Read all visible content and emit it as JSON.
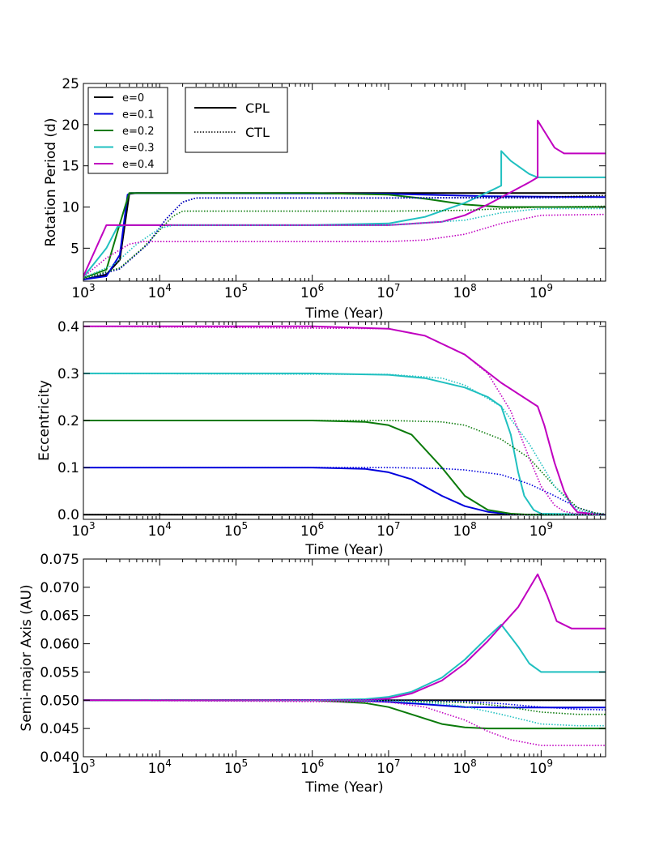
{
  "chart_data": [
    {
      "type": "line",
      "ylabel": "Rotation Period (d)",
      "xlabel": "Time (Year)",
      "xscale": "log",
      "xlim": [
        1000,
        7000000000
      ],
      "ylim": [
        1,
        25
      ],
      "yticks": [
        5,
        10,
        15,
        20,
        25
      ],
      "ytick_labels": [
        "5",
        "10",
        "15",
        "20",
        "25"
      ],
      "xticks": [
        1000,
        10000,
        100000,
        1000000,
        10000000,
        100000000,
        1000000000
      ],
      "xtick_bases": [
        "10",
        "10",
        "10",
        "10",
        "10",
        "10",
        "10"
      ],
      "xtick_exps": [
        "3",
        "4",
        "5",
        "6",
        "7",
        "8",
        "9"
      ],
      "legend_ecc": {
        "placement": "top-left",
        "entries": [
          {
            "label": "e=0",
            "color": "#000000"
          },
          {
            "label": "e=0.1",
            "color": "#0000dd"
          },
          {
            "label": "e=0.2",
            "color": "#0a7a0a"
          },
          {
            "label": "e=0.3",
            "color": "#20c0c0"
          },
          {
            "label": "e=0.4",
            "color": "#c000c0"
          }
        ]
      },
      "legend_model": {
        "placement": "top-left",
        "entries": [
          {
            "label": "CPL",
            "style": "solid"
          },
          {
            "label": "CTL",
            "style": "dotted"
          }
        ]
      },
      "series": [
        {
          "name": "e=0 CPL",
          "color": "#000000",
          "style": "solid",
          "x": [
            1000,
            2000,
            3000,
            4000,
            5000,
            1000000000,
            7000000000
          ],
          "y": [
            1.2,
            1.8,
            3.6,
            11.6,
            11.7,
            11.7,
            11.7
          ]
        },
        {
          "name": "e=0.1 CPL",
          "color": "#0000dd",
          "style": "solid",
          "x": [
            1000,
            2000,
            3000,
            3800,
            4200,
            10000000,
            200000000,
            7000000000
          ],
          "y": [
            1.2,
            1.6,
            4.2,
            11.5,
            11.7,
            11.6,
            11.3,
            11.2
          ]
        },
        {
          "name": "e=0.2 CPL",
          "color": "#0a7a0a",
          "style": "solid",
          "x": [
            1000,
            2000,
            2800,
            3500,
            4000,
            1000000,
            10000000,
            30000000,
            100000000,
            300000000,
            1000000000,
            7000000000
          ],
          "y": [
            1.4,
            2.4,
            7,
            10,
            11.7,
            11.7,
            11.5,
            11,
            10.3,
            10,
            10,
            10
          ]
        },
        {
          "name": "e=0.3 CPL",
          "color": "#20c0c0",
          "style": "solid",
          "x": [
            1000,
            2000,
            2800,
            3500,
            1000000,
            10000000,
            30000000,
            100000000,
            200000000,
            300000000,
            300001000,
            400000000,
            700000000,
            900000000,
            7000000000
          ],
          "y": [
            1.5,
            5,
            7.6,
            7.8,
            7.8,
            8,
            8.8,
            10.5,
            11.8,
            12.6,
            16.8,
            15.6,
            14,
            13.6,
            13.6
          ]
        },
        {
          "name": "e=0.4 CPL",
          "color": "#c000c0",
          "style": "solid",
          "x": [
            1000,
            2000,
            1000000,
            10000000,
            50000000,
            100000000,
            200000000,
            400000000,
            700000000,
            900000000,
            900001000,
            1100000000,
            1500000000,
            2000000000,
            7000000000
          ],
          "y": [
            1.6,
            7.8,
            7.8,
            7.8,
            8.2,
            9,
            10.3,
            11.8,
            13,
            13.6,
            20.5,
            19.2,
            17.2,
            16.5,
            16.5
          ]
        },
        {
          "name": "e=0 CTL",
          "color": "#000000",
          "style": "dotted",
          "x": [
            1000,
            3000,
            7000,
            12000,
            20000,
            30000,
            10000000,
            1000000000,
            7000000000
          ],
          "y": [
            1.2,
            2.5,
            5.5,
            8.5,
            10.6,
            11.1,
            11.1,
            11.2,
            11.4
          ]
        },
        {
          "name": "e=0.1 CTL",
          "color": "#0000dd",
          "style": "dotted",
          "x": [
            1000,
            3000,
            7000,
            12000,
            20000,
            30000,
            10000000,
            1000000000,
            7000000000
          ],
          "y": [
            1.2,
            2.5,
            5.5,
            8.5,
            10.6,
            11.1,
            11.1,
            11.1,
            11.2
          ]
        },
        {
          "name": "e=0.2 CTL",
          "color": "#0a7a0a",
          "style": "dotted",
          "x": [
            1000,
            3000,
            6000,
            10000,
            15000,
            20000,
            10000000,
            100000000,
            1000000000,
            7000000000
          ],
          "y": [
            1.3,
            2.6,
            5,
            7.2,
            8.9,
            9.5,
            9.5,
            9.6,
            10,
            10.1
          ]
        },
        {
          "name": "e=0.3 CTL",
          "color": "#20c0c0",
          "style": "dotted",
          "x": [
            1000,
            2500,
            5000,
            10000,
            15000,
            1000000,
            10000000,
            100000000,
            300000000,
            1000000000,
            7000000000
          ],
          "y": [
            1.4,
            3,
            5.5,
            7.4,
            7.8,
            7.8,
            7.8,
            8.4,
            9.3,
            9.8,
            9.8
          ]
        },
        {
          "name": "e=0.4 CTL",
          "color": "#c000c0",
          "style": "dotted",
          "x": [
            1000,
            2000,
            4000,
            6000,
            10000,
            10000000,
            30000000,
            100000000,
            300000000,
            1000000000,
            7000000000
          ],
          "y": [
            1.5,
            3.8,
            5.5,
            5.8,
            5.8,
            5.8,
            6,
            6.7,
            8,
            9,
            9.1
          ]
        }
      ]
    },
    {
      "type": "line",
      "ylabel": "Eccentricity",
      "xlabel": "Time (Year)",
      "xscale": "log",
      "xlim": [
        1000,
        7000000000
      ],
      "ylim": [
        -0.01,
        0.41
      ],
      "yticks": [
        0,
        0.1,
        0.2,
        0.3,
        0.4
      ],
      "ytick_labels": [
        "0.0",
        "0.1",
        "0.2",
        "0.3",
        "0.4"
      ],
      "xticks": [
        1000,
        10000,
        100000,
        1000000,
        10000000,
        100000000,
        1000000000
      ],
      "xtick_bases": [
        "10",
        "10",
        "10",
        "10",
        "10",
        "10",
        "10"
      ],
      "xtick_exps": [
        "3",
        "4",
        "5",
        "6",
        "7",
        "8",
        "9"
      ],
      "series": [
        {
          "name": "e=0 CPL",
          "color": "#000000",
          "style": "solid",
          "x": [
            1000,
            7000000000
          ],
          "y": [
            0,
            0
          ]
        },
        {
          "name": "e=0.1 CPL",
          "color": "#0000dd",
          "style": "solid",
          "x": [
            1000,
            1000000,
            5000000,
            10000000,
            20000000,
            50000000,
            100000000,
            200000000,
            400000000,
            700000000,
            7000000000
          ],
          "y": [
            0.1,
            0.1,
            0.097,
            0.09,
            0.075,
            0.04,
            0.018,
            0.006,
            0.001,
            0,
            0
          ]
        },
        {
          "name": "e=0.2 CPL",
          "color": "#0a7a0a",
          "style": "solid",
          "x": [
            1000,
            1000000,
            5000000,
            10000000,
            20000000,
            50000000,
            100000000,
            200000000,
            400000000,
            700000000,
            7000000000
          ],
          "y": [
            0.2,
            0.2,
            0.197,
            0.19,
            0.17,
            0.1,
            0.04,
            0.01,
            0.002,
            0,
            0
          ]
        },
        {
          "name": "e=0.3 CPL",
          "color": "#20c0c0",
          "style": "solid",
          "x": [
            1000,
            1000000,
            10000000,
            30000000,
            100000000,
            200000000,
            300000000,
            400000000,
            500000000,
            600000000,
            800000000,
            1000000000,
            7000000000
          ],
          "y": [
            0.3,
            0.3,
            0.297,
            0.29,
            0.27,
            0.25,
            0.23,
            0.17,
            0.09,
            0.04,
            0.01,
            0.002,
            0
          ]
        },
        {
          "name": "e=0.4 CPL",
          "color": "#c000c0",
          "style": "solid",
          "x": [
            1000,
            1000000,
            10000000,
            30000000,
            100000000,
            300000000,
            900000000,
            1100000000,
            1500000000,
            2000000000,
            2500000000,
            3000000000,
            7000000000
          ],
          "y": [
            0.4,
            0.4,
            0.395,
            0.38,
            0.34,
            0.28,
            0.23,
            0.19,
            0.11,
            0.05,
            0.02,
            0.005,
            0
          ]
        },
        {
          "name": "e=0 CTL",
          "color": "#000000",
          "style": "dotted",
          "x": [
            1000,
            7000000000
          ],
          "y": [
            0,
            0
          ]
        },
        {
          "name": "e=0.1 CTL",
          "color": "#0000dd",
          "style": "dotted",
          "x": [
            1000,
            10000000,
            50000000,
            100000000,
            300000000,
            700000000,
            1500000000,
            3000000000,
            5000000000,
            7000000000
          ],
          "y": [
            0.1,
            0.1,
            0.098,
            0.095,
            0.085,
            0.065,
            0.04,
            0.015,
            0.004,
            0.001
          ]
        },
        {
          "name": "e=0.2 CTL",
          "color": "#0a7a0a",
          "style": "dotted",
          "x": [
            1000,
            10000000,
            50000000,
            100000000,
            300000000,
            700000000,
            1500000000,
            3000000000,
            5000000000,
            7000000000
          ],
          "y": [
            0.2,
            0.2,
            0.197,
            0.19,
            0.16,
            0.12,
            0.06,
            0.015,
            0.004,
            0.001
          ]
        },
        {
          "name": "e=0.3 CTL",
          "color": "#20c0c0",
          "style": "dotted",
          "x": [
            1000,
            10000000,
            50000000,
            100000000,
            300000000,
            700000000,
            1500000000,
            3000000000,
            5000000000,
            7000000000
          ],
          "y": [
            0.3,
            0.298,
            0.29,
            0.275,
            0.23,
            0.15,
            0.06,
            0.01,
            0.002,
            0
          ]
        },
        {
          "name": "e=0.4 CTL",
          "color": "#c000c0",
          "style": "dotted",
          "x": [
            1000,
            10000000,
            30000000,
            100000000,
            200000000,
            400000000,
            700000000,
            1000000000,
            1500000000,
            2000000000,
            3000000000,
            7000000000
          ],
          "y": [
            0.4,
            0.395,
            0.38,
            0.34,
            0.3,
            0.22,
            0.12,
            0.06,
            0.02,
            0.007,
            0.001,
            0
          ]
        }
      ]
    },
    {
      "type": "line",
      "ylabel": "Semi-major Axis (AU)",
      "xlabel": "Time (Year)",
      "xscale": "log",
      "xlim": [
        1000,
        7000000000
      ],
      "ylim": [
        0.04,
        0.075
      ],
      "yticks": [
        0.04,
        0.045,
        0.05,
        0.055,
        0.06,
        0.065,
        0.07,
        0.075
      ],
      "ytick_labels": [
        "0.040",
        "0.045",
        "0.050",
        "0.055",
        "0.060",
        "0.065",
        "0.070",
        "0.075"
      ],
      "xticks": [
        1000,
        10000,
        100000,
        1000000,
        10000000,
        100000000,
        1000000000
      ],
      "xtick_bases": [
        "10",
        "10",
        "10",
        "10",
        "10",
        "10",
        "10"
      ],
      "xtick_exps": [
        "3",
        "4",
        "5",
        "6",
        "7",
        "8",
        "9"
      ],
      "series": [
        {
          "name": "e=0 CPL",
          "color": "#000000",
          "style": "solid",
          "x": [
            1000,
            7000000000
          ],
          "y": [
            0.05,
            0.05
          ]
        },
        {
          "name": "e=0.1 CPL",
          "color": "#0000dd",
          "style": "solid",
          "x": [
            1000,
            1000000,
            5000000,
            10000000,
            30000000,
            100000000,
            300000000,
            1000000000,
            7000000000
          ],
          "y": [
            0.05,
            0.05,
            0.0499,
            0.0497,
            0.0493,
            0.0488,
            0.0487,
            0.0487,
            0.0487
          ]
        },
        {
          "name": "e=0.2 CPL",
          "color": "#0a7a0a",
          "style": "solid",
          "x": [
            1000,
            1000000,
            5000000,
            10000000,
            20000000,
            50000000,
            100000000,
            200000000,
            500000000,
            7000000000
          ],
          "y": [
            0.05,
            0.05,
            0.0495,
            0.0488,
            0.0475,
            0.0458,
            0.0452,
            0.045,
            0.045,
            0.045
          ]
        },
        {
          "name": "e=0.3 CPL",
          "color": "#20c0c0",
          "style": "solid",
          "x": [
            1000,
            1000000,
            5000000,
            10000000,
            20000000,
            50000000,
            100000000,
            200000000,
            300000000,
            500000000,
            700000000,
            1000000000,
            7000000000
          ],
          "y": [
            0.05,
            0.05,
            0.0502,
            0.0506,
            0.0515,
            0.054,
            0.0572,
            0.0612,
            0.0634,
            0.0595,
            0.0565,
            0.055,
            0.055
          ]
        },
        {
          "name": "e=0.4 CPL",
          "color": "#c000c0",
          "style": "solid",
          "x": [
            1000,
            1000000,
            5000000,
            10000000,
            20000000,
            50000000,
            100000000,
            200000000,
            500000000,
            900000000,
            1200000000,
            1600000000,
            2500000000,
            7000000000
          ],
          "y": [
            0.05,
            0.05,
            0.05,
            0.0503,
            0.0512,
            0.0535,
            0.0565,
            0.0605,
            0.0665,
            0.0723,
            0.0685,
            0.064,
            0.0627,
            0.0627
          ]
        },
        {
          "name": "e=0 CTL",
          "color": "#000000",
          "style": "dotted",
          "x": [
            1000,
            7000000000
          ],
          "y": [
            0.05,
            0.05
          ]
        },
        {
          "name": "e=0.1 CTL",
          "color": "#0000dd",
          "style": "dotted",
          "x": [
            1000,
            10000000,
            100000000,
            300000000,
            1000000000,
            3000000000,
            7000000000
          ],
          "y": [
            0.05,
            0.05,
            0.0498,
            0.0494,
            0.0488,
            0.0484,
            0.0483
          ]
        },
        {
          "name": "e=0.2 CTL",
          "color": "#0a7a0a",
          "style": "dotted",
          "x": [
            1000,
            10000000,
            100000000,
            300000000,
            1000000000,
            3000000000,
            7000000000
          ],
          "y": [
            0.05,
            0.0499,
            0.0496,
            0.049,
            0.0479,
            0.0475,
            0.0475
          ]
        },
        {
          "name": "e=0.3 CTL",
          "color": "#20c0c0",
          "style": "dotted",
          "x": [
            1000,
            10000000,
            50000000,
            100000000,
            300000000,
            1000000000,
            3000000000,
            7000000000
          ],
          "y": [
            0.05,
            0.0499,
            0.0494,
            0.0489,
            0.0475,
            0.0458,
            0.0455,
            0.0455
          ]
        },
        {
          "name": "e=0.4 CTL",
          "color": "#c000c0",
          "style": "dotted",
          "x": [
            1000,
            10000000,
            30000000,
            100000000,
            200000000,
            400000000,
            1000000000,
            3000000000,
            7000000000
          ],
          "y": [
            0.05,
            0.0497,
            0.0488,
            0.0465,
            0.0445,
            0.043,
            0.042,
            0.042,
            0.042
          ]
        }
      ]
    }
  ]
}
